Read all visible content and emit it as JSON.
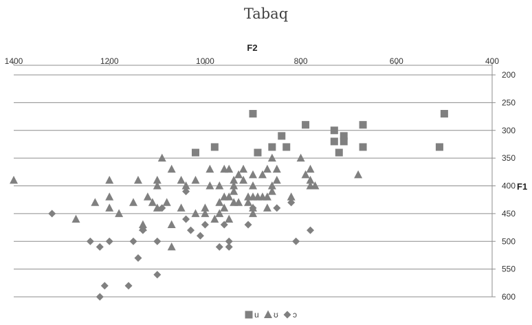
{
  "chart_data": {
    "type": "scatter",
    "title": "Tabaq",
    "xlabel": "F2",
    "ylabel": "F1",
    "x_axis_position": "top",
    "y_axis_position": "right",
    "x_reversed": true,
    "y_reversed": true,
    "xlim": [
      400,
      1400
    ],
    "ylim": [
      200,
      600
    ],
    "x_ticks": [
      "1400",
      "1200",
      "1000",
      "800",
      "600",
      "400"
    ],
    "y_ticks": [
      "200",
      "250",
      "300",
      "350",
      "400",
      "450",
      "500",
      "550",
      "600"
    ],
    "grid": "horizontal",
    "legend_position": "bottom",
    "series": [
      {
        "name": "u",
        "marker": "square",
        "color": "#808080",
        "points": [
          [
            500,
            270
          ],
          [
            510,
            330
          ],
          [
            670,
            290
          ],
          [
            670,
            330
          ],
          [
            720,
            340
          ],
          [
            710,
            310
          ],
          [
            710,
            320
          ],
          [
            730,
            300
          ],
          [
            730,
            320
          ],
          [
            790,
            290
          ],
          [
            830,
            330
          ],
          [
            840,
            310
          ],
          [
            860,
            330
          ],
          [
            890,
            340
          ],
          [
            900,
            270
          ],
          [
            980,
            330
          ],
          [
            1020,
            340
          ]
        ]
      },
      {
        "name": "ʊ",
        "marker": "triangle",
        "color": "#808080",
        "points": [
          [
            1400,
            390
          ],
          [
            1270,
            460
          ],
          [
            1230,
            430
          ],
          [
            1200,
            390
          ],
          [
            1200,
            420
          ],
          [
            1200,
            440
          ],
          [
            1180,
            450
          ],
          [
            1150,
            430
          ],
          [
            1140,
            390
          ],
          [
            1130,
            470
          ],
          [
            1130,
            475
          ],
          [
            1120,
            420
          ],
          [
            1110,
            430
          ],
          [
            1100,
            390
          ],
          [
            1100,
            400
          ],
          [
            1100,
            440
          ],
          [
            1090,
            350
          ],
          [
            1080,
            430
          ],
          [
            1070,
            370
          ],
          [
            1070,
            470
          ],
          [
            1070,
            510
          ],
          [
            1050,
            390
          ],
          [
            1050,
            440
          ],
          [
            1040,
            400
          ],
          [
            1020,
            390
          ],
          [
            1020,
            450
          ],
          [
            1000,
            440
          ],
          [
            1000,
            450
          ],
          [
            990,
            370
          ],
          [
            990,
            400
          ],
          [
            980,
            460
          ],
          [
            970,
            400
          ],
          [
            970,
            430
          ],
          [
            970,
            450
          ],
          [
            960,
            370
          ],
          [
            960,
            420
          ],
          [
            960,
            440
          ],
          [
            950,
            370
          ],
          [
            950,
            420
          ],
          [
            950,
            460
          ],
          [
            940,
            390
          ],
          [
            940,
            400
          ],
          [
            940,
            410
          ],
          [
            940,
            430
          ],
          [
            930,
            380
          ],
          [
            930,
            430
          ],
          [
            920,
            370
          ],
          [
            920,
            390
          ],
          [
            910,
            420
          ],
          [
            910,
            430
          ],
          [
            900,
            380
          ],
          [
            900,
            400
          ],
          [
            900,
            420
          ],
          [
            900,
            440
          ],
          [
            900,
            450
          ],
          [
            890,
            420
          ],
          [
            880,
            380
          ],
          [
            880,
            420
          ],
          [
            870,
            370
          ],
          [
            870,
            420
          ],
          [
            870,
            440
          ],
          [
            860,
            350
          ],
          [
            860,
            400
          ],
          [
            860,
            410
          ],
          [
            850,
            370
          ],
          [
            850,
            390
          ],
          [
            820,
            420
          ],
          [
            800,
            350
          ],
          [
            790,
            380
          ],
          [
            780,
            370
          ],
          [
            780,
            390
          ],
          [
            780,
            400
          ],
          [
            770,
            400
          ],
          [
            680,
            380
          ]
        ]
      },
      {
        "name": "ɔ",
        "marker": "diamond",
        "color": "#808080",
        "points": [
          [
            1320,
            450
          ],
          [
            1240,
            500
          ],
          [
            1220,
            510
          ],
          [
            1220,
            600
          ],
          [
            1210,
            580
          ],
          [
            1200,
            500
          ],
          [
            1160,
            580
          ],
          [
            1150,
            500
          ],
          [
            1140,
            530
          ],
          [
            1130,
            480
          ],
          [
            1100,
            500
          ],
          [
            1100,
            560
          ],
          [
            1090,
            440
          ],
          [
            1040,
            410
          ],
          [
            1040,
            460
          ],
          [
            1030,
            480
          ],
          [
            1010,
            490
          ],
          [
            1000,
            470
          ],
          [
            970,
            510
          ],
          [
            960,
            470
          ],
          [
            950,
            500
          ],
          [
            950,
            510
          ],
          [
            910,
            470
          ],
          [
            900,
            440
          ],
          [
            850,
            440
          ],
          [
            820,
            430
          ],
          [
            810,
            500
          ],
          [
            780,
            480
          ]
        ]
      }
    ]
  }
}
